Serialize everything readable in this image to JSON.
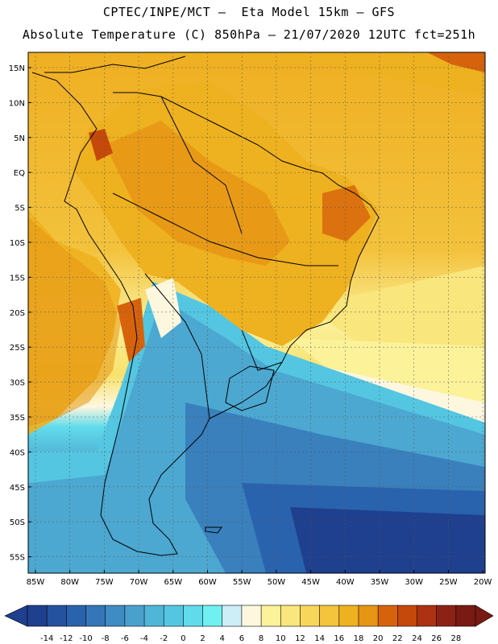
{
  "header": {
    "line1": "CPTEC/INPE/MCT –  Eta Model 15km – GFS",
    "line2": "Absolute Temperature (C) 850hPa – 21/07/2020 12UTC fct=251h"
  },
  "map": {
    "lat_labels": [
      "15N",
      "10N",
      "5N",
      "EQ",
      "5S",
      "10S",
      "15S",
      "20S",
      "25S",
      "30S",
      "35S",
      "40S",
      "45S",
      "50S",
      "55S"
    ],
    "lon_labels": [
      "85W",
      "80W",
      "75W",
      "70W",
      "65W",
      "60W",
      "55W",
      "50W",
      "45W",
      "40W",
      "35W",
      "30W",
      "25W",
      "20W"
    ]
  },
  "colorbar": {
    "labels": [
      "-14",
      "-12",
      "-10",
      "-8",
      "-6",
      "-4",
      "-2",
      "0",
      "2",
      "4",
      "6",
      "8",
      "10",
      "12",
      "14",
      "16",
      "18",
      "20",
      "22",
      "24",
      "26",
      "28"
    ],
    "colors": [
      "#1f3f8f",
      "#24529f",
      "#2a63ad",
      "#3476b8",
      "#3f8bc3",
      "#4aa0cd",
      "#4fb6d8",
      "#54c6e2",
      "#60dbeb",
      "#70f0f0",
      "#cdeef6",
      "#fdf7df",
      "#fbf29a",
      "#f9e67c",
      "#f7d65a",
      "#f3c43c",
      "#eeb11f",
      "#e69514",
      "#d6630b",
      "#c4490a",
      "#ac3213",
      "#8c2216",
      "#7a1a14"
    ]
  }
}
